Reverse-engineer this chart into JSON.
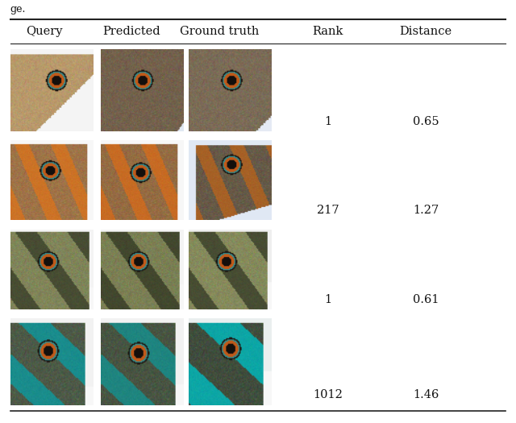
{
  "title": "ge.",
  "columns": [
    "Query",
    "Predicted",
    "Ground truth",
    "Rank",
    "Distance"
  ],
  "rows": [
    {
      "rank": "1",
      "distance": "0.65"
    },
    {
      "rank": "217",
      "distance": "1.27"
    },
    {
      "rank": "1",
      "distance": "0.61"
    },
    {
      "rank": "1012",
      "distance": "1.46"
    }
  ],
  "background": "#ffffff",
  "text_color": "#111111",
  "header_fontsize": 10.5,
  "data_fontsize": 10.5,
  "line_color": "#333333"
}
